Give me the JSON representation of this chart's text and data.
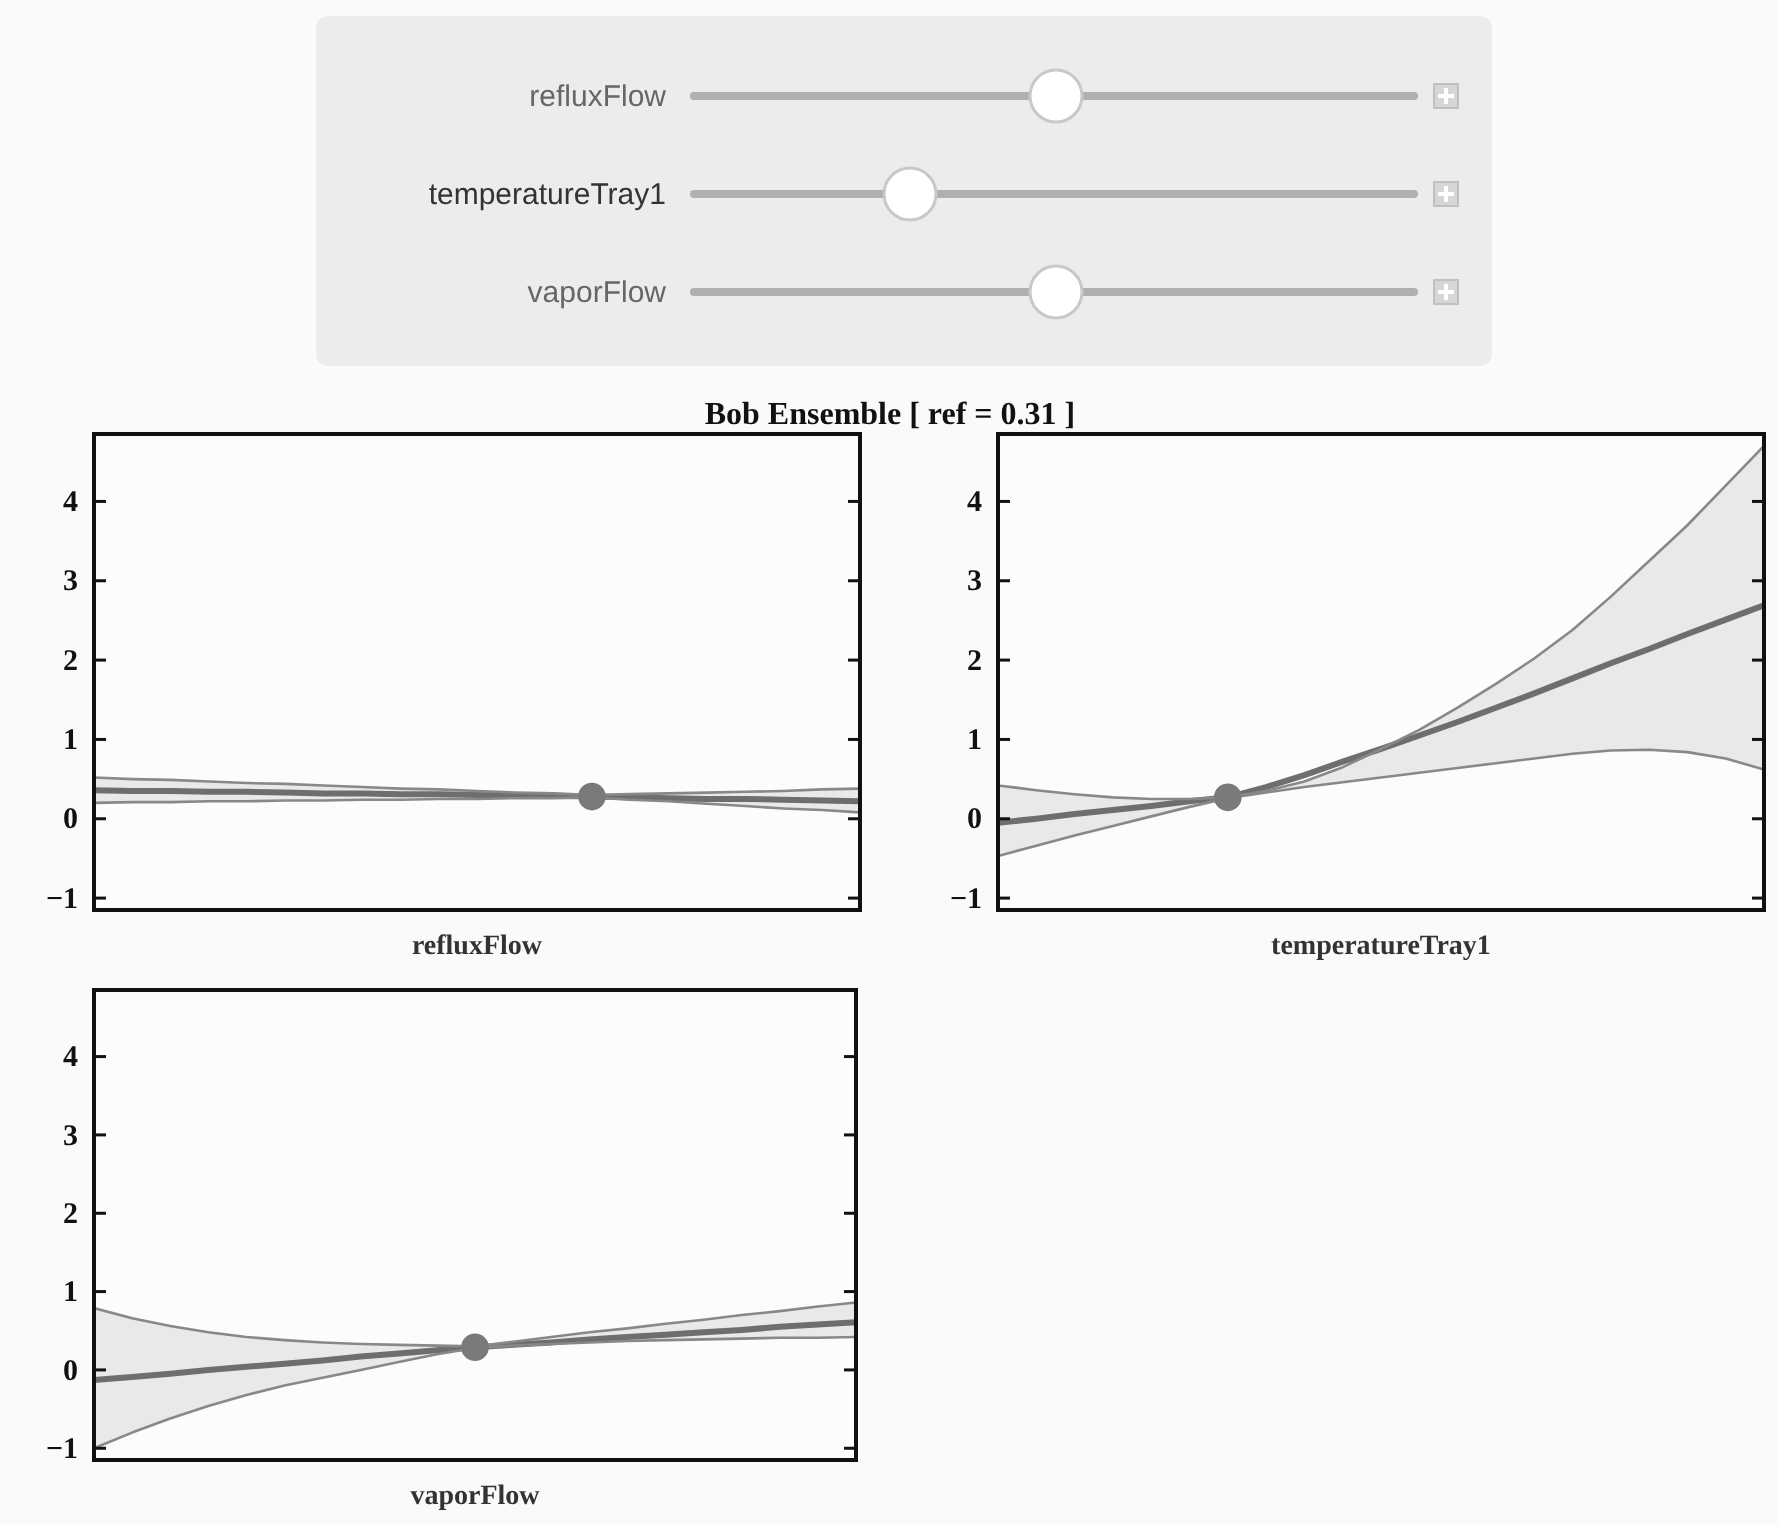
{
  "chart_data": [
    {
      "type": "other",
      "title": "Bob Ensemble [ ref = 0.31 ]",
      "annotations": [
        "refluxFlow",
        "temperatureTray1",
        "vaporFlow"
      ]
    },
    {
      "type": "line",
      "xlabel": "refluxFlow",
      "categories": [
        null,
        null,
        null,
        null,
        null,
        null,
        null,
        null,
        null,
        null,
        null,
        null,
        null,
        null,
        null,
        null,
        null,
        null,
        null,
        null,
        null
      ],
      "ylim": [
        -1.15,
        4.85
      ],
      "yticks": [
        -1,
        0,
        1,
        2,
        3,
        4
      ],
      "tick_labels": "y",
      "series": [
        {
          "color": "#6e6e6e",
          "values": [
            0.36,
            0.35,
            0.35,
            0.34,
            0.34,
            0.33,
            0.32,
            0.32,
            0.31,
            0.31,
            0.3,
            0.29,
            0.29,
            0.28,
            0.27,
            0.26,
            0.25,
            0.25,
            0.24,
            0.23,
            0.22
          ],
          "lower": [
            0.2,
            0.21,
            0.21,
            0.22,
            0.22,
            0.23,
            0.23,
            0.24,
            0.24,
            0.25,
            0.25,
            0.26,
            0.26,
            0.27,
            0.24,
            0.22,
            0.19,
            0.16,
            0.13,
            0.11,
            0.08
          ],
          "upper": [
            0.52,
            0.5,
            0.49,
            0.47,
            0.45,
            0.44,
            0.42,
            0.4,
            0.38,
            0.37,
            0.35,
            0.33,
            0.32,
            0.3,
            0.31,
            0.32,
            0.33,
            0.34,
            0.35,
            0.37,
            0.38
          ]
        },
        {
          "color": "#888888",
          "values": [
            0.2,
            0.21,
            0.21,
            0.22,
            0.22,
            0.23,
            0.23,
            0.24,
            0.24,
            0.25,
            0.25,
            0.26,
            0.26,
            0.27,
            0.24,
            0.22,
            0.19,
            0.16,
            0.13,
            0.11,
            0.08
          ]
        },
        {
          "color": "#888888",
          "values": [
            0.52,
            0.5,
            0.49,
            0.47,
            0.45,
            0.44,
            0.42,
            0.4,
            0.38,
            0.37,
            0.35,
            0.33,
            0.32,
            0.3,
            0.31,
            0.32,
            0.33,
            0.34,
            0.35,
            0.37,
            0.38
          ]
        },
        {
          "type": "scatter",
          "marker": "circle",
          "color": "#7a7a7a",
          "values": [
            null,
            null,
            null,
            null,
            null,
            null,
            null,
            null,
            null,
            null,
            null,
            null,
            null,
            0.28,
            null,
            null,
            null,
            null,
            null,
            null,
            null
          ]
        }
      ]
    },
    {
      "type": "line",
      "xlabel": "temperatureTray1",
      "categories": [
        null,
        null,
        null,
        null,
        null,
        null,
        null,
        null,
        null,
        null,
        null,
        null,
        null,
        null,
        null,
        null,
        null,
        null,
        null,
        null,
        null
      ],
      "ylim": [
        -1.15,
        4.85
      ],
      "yticks": [
        -1,
        0,
        1,
        2,
        3,
        4
      ],
      "tick_labels": "y",
      "series": [
        {
          "color": "#6e6e6e",
          "values": [
            -0.05,
            0.0,
            0.06,
            0.11,
            0.16,
            0.22,
            0.27,
            0.4,
            0.55,
            0.72,
            0.88,
            1.05,
            1.22,
            1.4,
            1.58,
            1.77,
            1.96,
            2.14,
            2.33,
            2.51,
            2.69
          ],
          "lower": [
            -0.47,
            -0.34,
            -0.21,
            -0.09,
            0.03,
            0.15,
            0.26,
            0.33,
            0.4,
            0.46,
            0.52,
            0.58,
            0.64,
            0.7,
            0.76,
            0.82,
            0.86,
            0.87,
            0.84,
            0.76,
            0.62
          ],
          "upper": [
            0.42,
            0.36,
            0.31,
            0.27,
            0.25,
            0.25,
            0.27,
            0.35,
            0.47,
            0.65,
            0.88,
            1.12,
            1.4,
            1.7,
            2.02,
            2.38,
            2.8,
            3.25,
            3.7,
            4.2,
            4.7
          ]
        },
        {
          "color": "#888888",
          "values": [
            -0.47,
            -0.34,
            -0.21,
            -0.09,
            0.03,
            0.15,
            0.26,
            0.33,
            0.4,
            0.46,
            0.52,
            0.58,
            0.64,
            0.7,
            0.76,
            0.82,
            0.86,
            0.87,
            0.84,
            0.76,
            0.62
          ]
        },
        {
          "color": "#888888",
          "values": [
            0.42,
            0.36,
            0.31,
            0.27,
            0.25,
            0.25,
            0.27,
            0.35,
            0.47,
            0.65,
            0.88,
            1.12,
            1.4,
            1.7,
            2.02,
            2.38,
            2.8,
            3.25,
            3.7,
            4.2,
            4.7
          ]
        },
        {
          "type": "scatter",
          "marker": "circle",
          "color": "#7a7a7a",
          "values": [
            null,
            null,
            null,
            null,
            null,
            null,
            0.27,
            null,
            null,
            null,
            null,
            null,
            null,
            null,
            null,
            null,
            null,
            null,
            null,
            null,
            null
          ]
        }
      ]
    },
    {
      "type": "line",
      "xlabel": "vaporFlow",
      "categories": [
        null,
        null,
        null,
        null,
        null,
        null,
        null,
        null,
        null,
        null,
        null,
        null,
        null,
        null,
        null,
        null,
        null,
        null,
        null,
        null,
        null
      ],
      "ylim": [
        -1.15,
        4.85
      ],
      "yticks": [
        -1,
        0,
        1,
        2,
        3,
        4
      ],
      "tick_labels": "y",
      "series": [
        {
          "color": "#6e6e6e",
          "values": [
            -0.13,
            -0.09,
            -0.05,
            0.0,
            0.04,
            0.08,
            0.12,
            0.17,
            0.21,
            0.25,
            0.29,
            0.32,
            0.35,
            0.39,
            0.42,
            0.45,
            0.48,
            0.51,
            0.55,
            0.58,
            0.61
          ],
          "lower": [
            -1.0,
            -0.8,
            -0.62,
            -0.46,
            -0.32,
            -0.2,
            -0.1,
            0.0,
            0.1,
            0.2,
            0.28,
            0.31,
            0.33,
            0.35,
            0.37,
            0.38,
            0.39,
            0.4,
            0.41,
            0.41,
            0.42
          ],
          "upper": [
            0.79,
            0.66,
            0.56,
            0.48,
            0.42,
            0.38,
            0.35,
            0.33,
            0.32,
            0.31,
            0.3,
            0.36,
            0.42,
            0.48,
            0.53,
            0.59,
            0.64,
            0.7,
            0.75,
            0.81,
            0.86
          ]
        },
        {
          "color": "#888888",
          "values": [
            -1.0,
            -0.8,
            -0.62,
            -0.46,
            -0.32,
            -0.2,
            -0.1,
            0.0,
            0.1,
            0.2,
            0.28,
            0.31,
            0.33,
            0.35,
            0.37,
            0.38,
            0.39,
            0.4,
            0.41,
            0.41,
            0.42
          ]
        },
        {
          "color": "#888888",
          "values": [
            0.79,
            0.66,
            0.56,
            0.48,
            0.42,
            0.38,
            0.35,
            0.33,
            0.32,
            0.31,
            0.3,
            0.36,
            0.42,
            0.48,
            0.53,
            0.59,
            0.64,
            0.7,
            0.75,
            0.81,
            0.86
          ]
        },
        {
          "type": "scatter",
          "marker": "circle",
          "color": "#7a7a7a",
          "values": [
            null,
            null,
            null,
            null,
            null,
            null,
            null,
            null,
            null,
            null,
            0.29,
            null,
            null,
            null,
            null,
            null,
            null,
            null,
            null,
            null,
            null
          ]
        }
      ]
    }
  ]
}
